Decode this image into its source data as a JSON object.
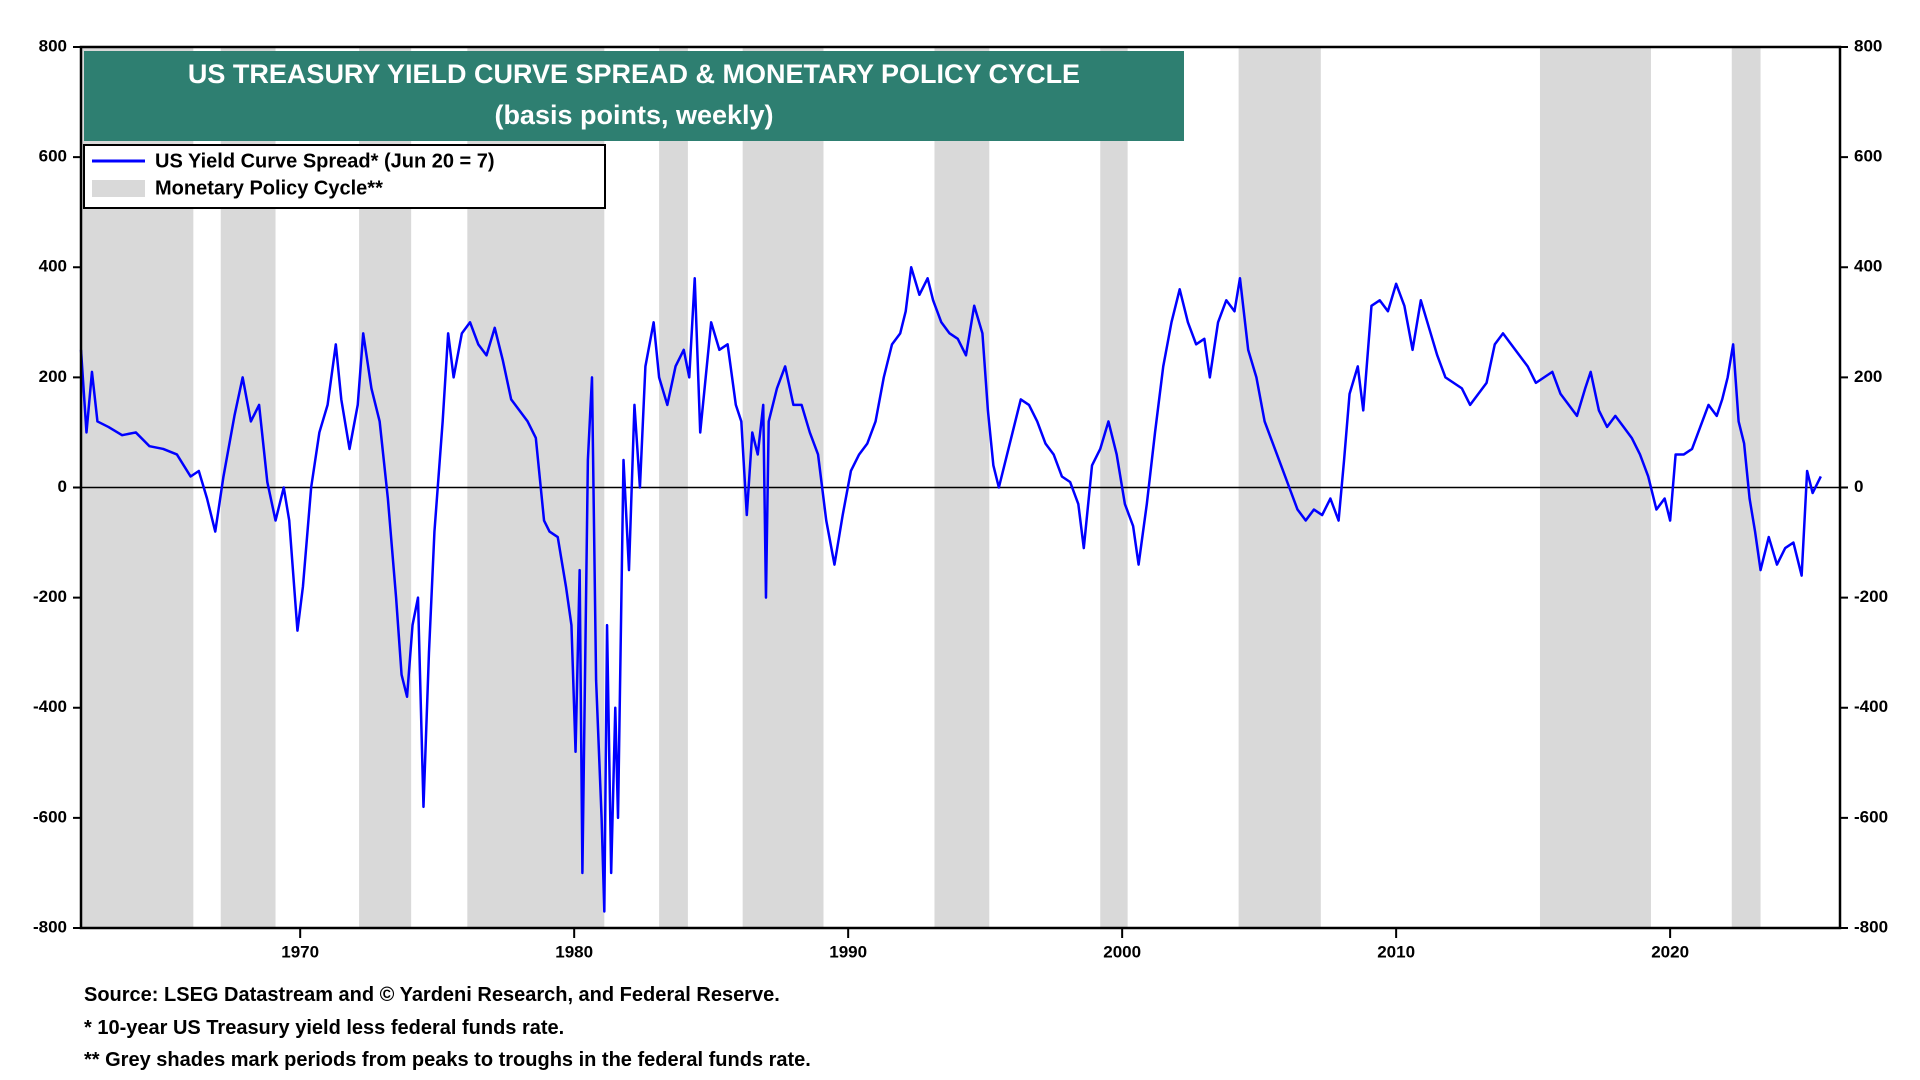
{
  "chart_data": {
    "type": "line",
    "title": "US TREASURY YIELD CURVE SPREAD & MONETARY POLICY CYCLE",
    "subtitle": "(basis points, weekly)",
    "x": [
      1962.0,
      1962.2,
      1962.4,
      1962.6,
      1963.0,
      1963.5,
      1964.0,
      1964.5,
      1965.0,
      1965.5,
      1966.0,
      1966.3,
      1966.6,
      1966.9,
      1967.2,
      1967.6,
      1967.9,
      1968.2,
      1968.5,
      1968.8,
      1969.1,
      1969.4,
      1969.6,
      1969.9,
      1970.1,
      1970.2,
      1970.4,
      1970.7,
      1971.0,
      1971.3,
      1971.5,
      1971.8,
      1972.1,
      1972.3,
      1972.6,
      1972.9,
      1973.2,
      1973.5,
      1973.7,
      1973.9,
      1974.1,
      1974.3,
      1974.5,
      1974.7,
      1974.9,
      1975.2,
      1975.4,
      1975.6,
      1975.9,
      1976.2,
      1976.5,
      1976.8,
      1977.1,
      1977.4,
      1977.7,
      1978.0,
      1978.3,
      1978.6,
      1978.9,
      1979.1,
      1979.4,
      1979.7,
      1979.9,
      1980.05,
      1980.2,
      1980.3,
      1980.5,
      1980.65,
      1980.8,
      1981.0,
      1981.1,
      1981.2,
      1981.35,
      1981.5,
      1981.6,
      1981.8,
      1982.0,
      1982.2,
      1982.4,
      1982.6,
      1982.9,
      1983.1,
      1983.4,
      1983.7,
      1984.0,
      1984.2,
      1984.4,
      1984.6,
      1984.8,
      1985.0,
      1985.3,
      1985.6,
      1985.9,
      1986.1,
      1986.3,
      1986.5,
      1986.7,
      1986.9,
      1987.0,
      1987.1,
      1987.4,
      1987.7,
      1988.0,
      1988.3,
      1988.6,
      1988.9,
      1989.2,
      1989.5,
      1989.8,
      1990.1,
      1990.4,
      1990.7,
      1991.0,
      1991.3,
      1991.6,
      1991.9,
      1992.1,
      1992.3,
      1992.6,
      1992.9,
      1993.1,
      1993.4,
      1993.7,
      1994.0,
      1994.3,
      1994.6,
      1994.9,
      1995.1,
      1995.3,
      1995.5,
      1995.8,
      1996.0,
      1996.3,
      1996.6,
      1996.9,
      1997.2,
      1997.5,
      1997.8,
      1998.1,
      1998.4,
      1998.6,
      1998.9,
      1999.2,
      1999.5,
      1999.8,
      2000.1,
      2000.4,
      2000.6,
      2000.9,
      2001.2,
      2001.5,
      2001.8,
      2002.1,
      2002.4,
      2002.7,
      2003.0,
      2003.2,
      2003.5,
      2003.8,
      2004.1,
      2004.3,
      2004.6,
      2004.9,
      2005.2,
      2005.5,
      2005.8,
      2006.1,
      2006.4,
      2006.7,
      2007.0,
      2007.3,
      2007.6,
      2007.9,
      2008.1,
      2008.3,
      2008.6,
      2008.8,
      2009.1,
      2009.4,
      2009.7,
      2010.0,
      2010.3,
      2010.6,
      2010.9,
      2011.2,
      2011.5,
      2011.8,
      2012.1,
      2012.4,
      2012.7,
      2013.0,
      2013.3,
      2013.6,
      2013.9,
      2014.2,
      2014.5,
      2014.8,
      2015.1,
      2015.4,
      2015.7,
      2016.0,
      2016.3,
      2016.6,
      2016.9,
      2017.1,
      2017.4,
      2017.7,
      2018.0,
      2018.3,
      2018.6,
      2018.9,
      2019.2,
      2019.5,
      2019.8,
      2020.0,
      2020.2,
      2020.5,
      2020.8,
      2021.1,
      2021.4,
      2021.7,
      2021.9,
      2022.1,
      2022.3,
      2022.5,
      2022.7,
      2022.9,
      2023.1,
      2023.3,
      2023.6,
      2023.9,
      2024.2,
      2024.5,
      2024.8,
      2025.0,
      2025.2,
      2025.5
    ],
    "series": [
      {
        "name": "US Yield Curve Spread* (Jun 20 = 7)",
        "color": "#0000ff",
        "values": [
          250,
          100,
          210,
          120,
          110,
          95,
          100,
          75,
          70,
          60,
          20,
          30,
          -20,
          -80,
          20,
          130,
          200,
          120,
          150,
          10,
          -60,
          0,
          -60,
          -260,
          -180,
          -120,
          0,
          100,
          150,
          260,
          160,
          70,
          150,
          280,
          180,
          120,
          -20,
          -200,
          -340,
          -380,
          -250,
          -200,
          -580,
          -300,
          -80,
          120,
          280,
          200,
          280,
          300,
          260,
          240,
          290,
          230,
          160,
          140,
          120,
          90,
          -60,
          -80,
          -90,
          -180,
          -250,
          -480,
          -150,
          -700,
          50,
          200,
          -350,
          -600,
          -770,
          -250,
          -700,
          -400,
          -600,
          50,
          -150,
          150,
          0,
          220,
          300,
          200,
          150,
          220,
          250,
          200,
          380,
          100,
          200,
          300,
          250,
          260,
          150,
          120,
          -50,
          100,
          60,
          150,
          -200,
          120,
          180,
          220,
          150,
          150,
          100,
          60,
          -60,
          -140,
          -50,
          30,
          60,
          80,
          120,
          200,
          260,
          280,
          320,
          400,
          350,
          380,
          340,
          300,
          280,
          270,
          240,
          330,
          280,
          140,
          40,
          0,
          60,
          100,
          160,
          150,
          120,
          80,
          60,
          20,
          10,
          -30,
          -110,
          40,
          70,
          120,
          60,
          -30,
          -70,
          -140,
          -30,
          100,
          220,
          300,
          360,
          300,
          260,
          270,
          200,
          300,
          340,
          320,
          380,
          250,
          200,
          120,
          80,
          40,
          0,
          -40,
          -60,
          -40,
          -50,
          -20,
          -60,
          50,
          170,
          220,
          140,
          330,
          340,
          320,
          370,
          330,
          250,
          340,
          290,
          240,
          200,
          190,
          180,
          150,
          170,
          190,
          260,
          280,
          260,
          240,
          220,
          190,
          200,
          210,
          170,
          150,
          130,
          180,
          210,
          140,
          110,
          130,
          110,
          90,
          60,
          20,
          -40,
          -20,
          -60,
          60,
          60,
          70,
          110,
          150,
          130,
          160,
          200,
          260,
          120,
          80,
          -20,
          -80,
          -150,
          -90,
          -140,
          -110,
          -100,
          -160,
          30,
          -10,
          20
        ]
      }
    ],
    "bands": {
      "name": "Monetary Policy Cycle**",
      "color": "#d9d9d9",
      "ranges": [
        [
          1962.0,
          1966.1
        ],
        [
          1967.1,
          1969.1
        ],
        [
          1972.15,
          1974.05
        ],
        [
          1976.1,
          1981.1
        ],
        [
          1983.1,
          1984.15
        ],
        [
          1986.15,
          1989.1
        ],
        [
          1993.15,
          1995.15
        ],
        [
          1999.2,
          2000.2
        ],
        [
          2004.25,
          2007.25
        ],
        [
          2015.25,
          2019.3
        ],
        [
          2022.25,
          2023.3
        ]
      ]
    },
    "xlim": [
      1962.0,
      2026.2
    ],
    "ylim": [
      -800,
      800
    ],
    "xticks": [
      1970,
      1980,
      1990,
      2000,
      2010,
      2020
    ],
    "yticks": [
      -800,
      -600,
      -400,
      -200,
      0,
      200,
      400,
      600,
      800
    ],
    "notes": [
      "Source: LSEG Datastream and © Yardeni Research, and Federal Reserve.",
      "* 10-year US Treasury yield less federal funds rate.",
      "** Grey shades mark periods from peaks to troughs in the federal funds rate."
    ]
  }
}
